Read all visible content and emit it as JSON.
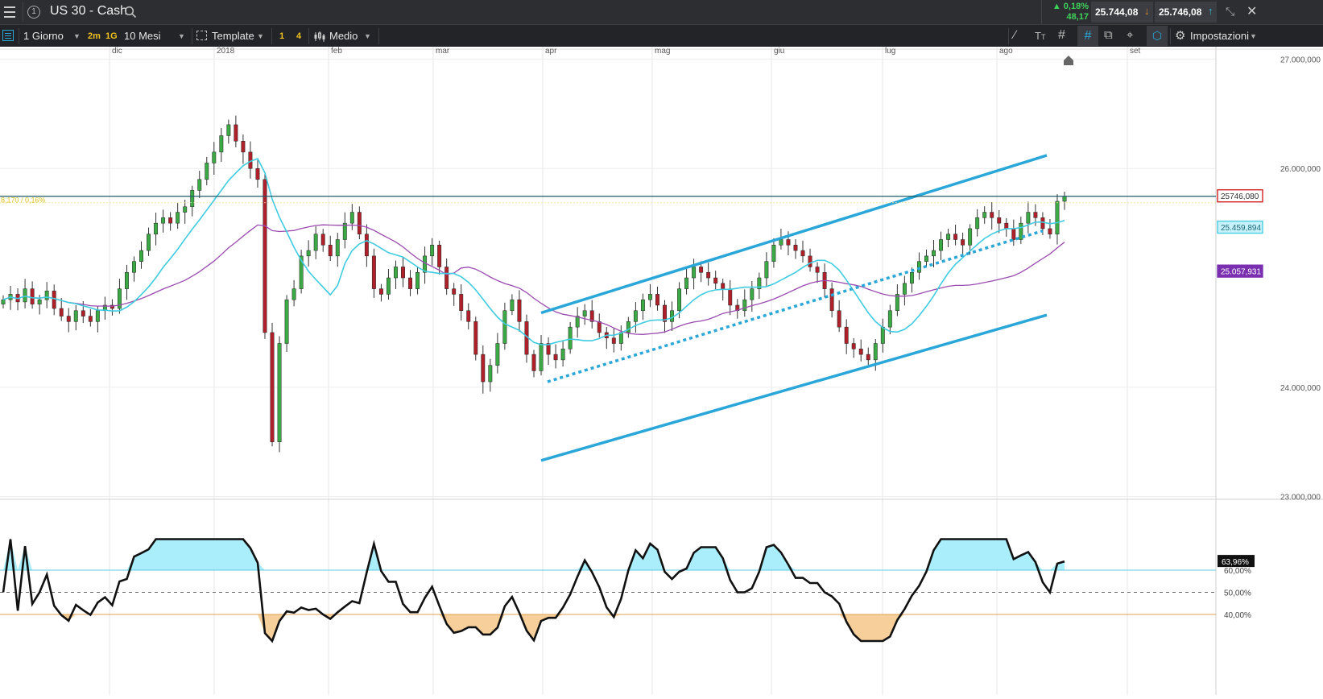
{
  "header": {
    "symbol": "US 30 - Cash",
    "change_pct": "0,18%",
    "change_pts": "48,17",
    "bid": "25.744,08",
    "ask": "25.746,08"
  },
  "toolbar": {
    "period": "1 Giorno",
    "tf_a": "2m",
    "tf_b": "1G",
    "range": "10 Mesi",
    "template": "Template",
    "badge_1": "1",
    "badge_4": "4",
    "style": "Medio",
    "settings": "Impostazioni"
  },
  "chart_data": {
    "type": "candlestick",
    "instrument": "US 30 - Cash",
    "x_labels": [
      "dic",
      "2018",
      "feb",
      "mar",
      "apr",
      "mag",
      "giu",
      "lug",
      "ago",
      "set"
    ],
    "y_ticks": [
      "27.000,000",
      "26.000,000",
      "24.000,000",
      "23.000,000"
    ],
    "y_range": [
      22990,
      27040
    ],
    "current_price_label": "25746,080",
    "ma_fast_label": "25.459,894",
    "ma_slow_label": "25.057,931",
    "change_annotation": "8,170 / 0,16%",
    "line_color": "#2aa7d8",
    "ma_fast_color": "#3fcbe0",
    "ma_slow_color": "#9b4bb0",
    "series_close": [
      24800,
      24850,
      24780,
      24900,
      24760,
      24800,
      24880,
      24720,
      24650,
      24600,
      24700,
      24650,
      24600,
      24700,
      24750,
      24720,
      24900,
      25050,
      25150,
      25250,
      25400,
      25500,
      25550,
      25500,
      25600,
      25650,
      25800,
      25900,
      26050,
      26150,
      26300,
      26400,
      26250,
      26150,
      26000,
      25900,
      24500,
      23500,
      24400,
      24800,
      24900,
      25200,
      25250,
      25400,
      25300,
      25200,
      25350,
      25500,
      25600,
      25400,
      25200,
      24900,
      24850,
      25000,
      25100,
      25000,
      24900,
      25050,
      25200,
      25300,
      25100,
      24900,
      24850,
      24700,
      24600,
      24300,
      24050,
      24200,
      24400,
      24700,
      24800,
      24600,
      24300,
      24150,
      24400,
      24300,
      24250,
      24350,
      24550,
      24650,
      24700,
      24600,
      24500,
      24450,
      24400,
      24500,
      24600,
      24700,
      24800,
      24850,
      24750,
      24600,
      24700,
      24900,
      25000,
      25100,
      25050,
      25000,
      24950,
      24900,
      24750,
      24700,
      24800,
      24900,
      25000,
      25150,
      25300,
      25350,
      25300,
      25250,
      25200,
      25100,
      25050,
      24900,
      24700,
      24550,
      24400,
      24350,
      24300,
      24250,
      24400,
      24550,
      24700,
      24850,
      24950,
      25050,
      25150,
      25200,
      25250,
      25350,
      25400,
      25350,
      25300,
      25450,
      25550,
      25600,
      25550,
      25500,
      25450,
      25350,
      25500,
      25600,
      25550,
      25450,
      25400,
      25700,
      25746
    ],
    "rsi_levels": [
      "60,00%",
      "50,00%",
      "40,00%"
    ],
    "rsi_current": "63,96%"
  }
}
